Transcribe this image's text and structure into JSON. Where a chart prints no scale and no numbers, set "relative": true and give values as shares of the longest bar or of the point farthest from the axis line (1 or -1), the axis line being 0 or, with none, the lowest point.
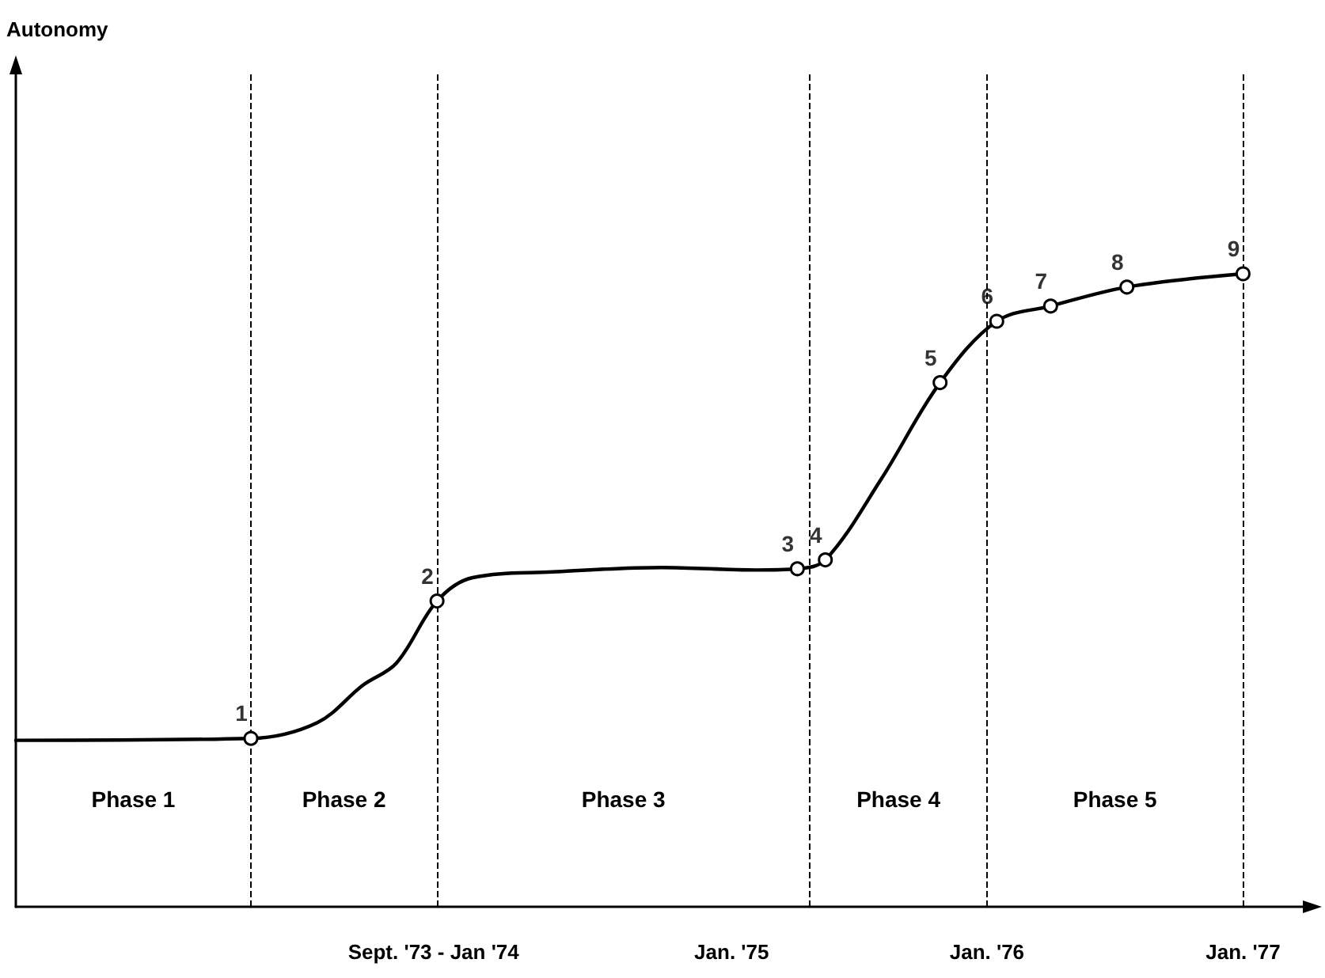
{
  "chart_data": {
    "type": "line",
    "relative": true,
    "tick_labels": "x",
    "grid": false,
    "xlim": [
      "1972-03-14",
      "1977-04-01"
    ],
    "xticks": [
      {
        "value": "1973-11-01",
        "label": "Sept. '73 - Jan '74"
      },
      {
        "value": "1975-01-01",
        "label": "Jan. '75"
      },
      {
        "value": "1976-01-01",
        "label": "Jan. '76"
      },
      {
        "value": "1977-01-01",
        "label": "Jan. '77"
      }
    ],
    "series": [
      {
        "type": "line",
        "color": "#000000",
        "marker": "none",
        "line_style": "solid",
        "x": [
          "1972-03-14",
          "1973-02-13",
          "1973-05-19",
          "1973-07-23",
          "1973-09-09",
          "1973-11-06",
          "1973-12-27",
          "1974-04-20",
          "1974-09-23",
          "1975-02-06",
          "1975-04-05",
          "1975-05-15",
          "1975-08-03",
          "1975-10-26",
          "1976-01-15",
          "1976-04-01",
          "1976-07-19",
          "1977-01-01"
        ],
        "values": [
          0.263,
          0.266,
          0.291,
          0.35,
          0.385,
          0.483,
          0.52,
          0.529,
          0.536,
          0.532,
          0.534,
          0.548,
          0.676,
          0.828,
          0.925,
          0.949,
          0.979,
          1
        ]
      },
      {
        "type": "scatter",
        "color": "#000000",
        "marker": "circle",
        "x": [
          "1973-02-13",
          "1973-11-06",
          "1975-04-05",
          "1975-05-15",
          "1975-10-26",
          "1976-01-15",
          "1976-04-01",
          "1976-07-19",
          "1977-01-01"
        ],
        "values": [
          0.266,
          0.483,
          0.534,
          0.548,
          0.828,
          0.925,
          0.949,
          0.979,
          1
        ]
      }
    ],
    "annotations": [
      {
        "text": "1",
        "x": "1973-02-13",
        "y": 0.266
      },
      {
        "text": "2",
        "x": "1973-11-06",
        "y": 0.483
      },
      {
        "text": "3",
        "x": "1975-04-05",
        "y": 0.534
      },
      {
        "text": "4",
        "x": "1975-05-15",
        "y": 0.548
      },
      {
        "text": "5",
        "x": "1975-10-26",
        "y": 0.828
      },
      {
        "text": "6",
        "x": "1976-01-15",
        "y": 0.925
      },
      {
        "text": "7",
        "x": "1976-04-01",
        "y": 0.949
      },
      {
        "text": "8",
        "x": "1976-07-19",
        "y": 0.979
      },
      {
        "text": "9",
        "x": "1977-01-01",
        "y": 1
      },
      "Autonomy",
      "Phase 1",
      "Phase 2",
      "Phase 3",
      "Phase 4",
      "Phase 5"
    ],
    "ref_lines": [
      {
        "axis": "x",
        "value": "1973-02-13",
        "line_style": "dashed"
      },
      {
        "axis": "x",
        "value": "1973-11-06",
        "line_style": "dashed"
      },
      {
        "axis": "x",
        "value": "1975-04-23",
        "line_style": "dashed"
      },
      {
        "axis": "x",
        "value": "1976-01-01",
        "line_style": "dashed"
      },
      {
        "axis": "x",
        "value": "1977-01-01",
        "line_style": "dashed"
      }
    ]
  }
}
